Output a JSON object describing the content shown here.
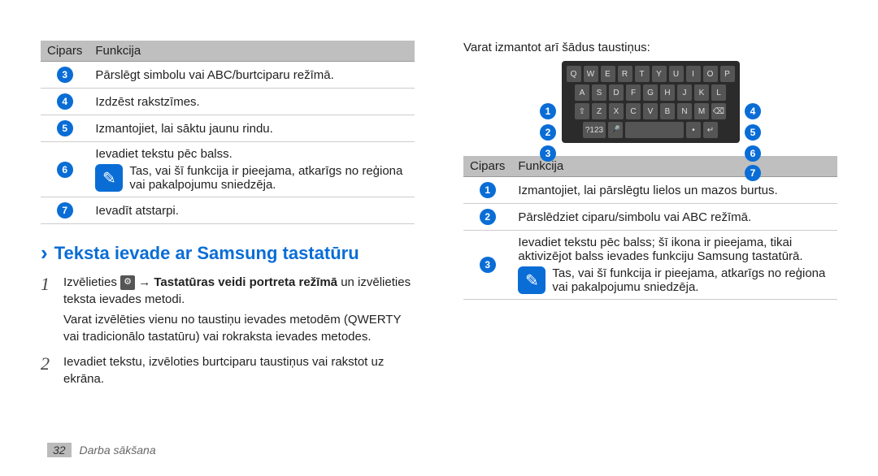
{
  "leftTable": {
    "headers": [
      "Cipars",
      "Funkcija"
    ],
    "rows": [
      {
        "num": "3",
        "text": "Pārslēgt simbolu vai ABC/burtciparu režīmā."
      },
      {
        "num": "4",
        "text": "Izdzēst rakstzīmes."
      },
      {
        "num": "5",
        "text": "Izmantojiet, lai sāktu jaunu rindu."
      },
      {
        "num": "6",
        "text": "Ievadiet tekstu pēc balss.",
        "note": "Tas, vai šī funkcija ir pieejama, atkarīgs no reģiona vai pakalpojumu sniedzēja."
      },
      {
        "num": "7",
        "text": "Ievadīt atstarpi."
      }
    ]
  },
  "section": {
    "title": "Teksta ievade ar Samsung tastatūru",
    "steps": [
      {
        "pre": "Izvēlieties ",
        "link": "→ Tastatūras veidi portreta režīmā",
        "post": " un izvēlieties teksta ievades metodi.",
        "extra": "Varat izvēlēties vienu no taustiņu ievades metodēm (QWERTY vai tradicionālo tastatūru) vai rokraksta ievades metodes."
      },
      {
        "pre": "Ievadiet tekstu, izvēloties burtciparu taustiņus vai rakstot uz ekrāna."
      }
    ]
  },
  "rightIntro": "Varat izmantot arī šādus taustiņus:",
  "keyboard": {
    "rows": [
      [
        "Q",
        "W",
        "E",
        "R",
        "T",
        "Y",
        "U",
        "I",
        "O",
        "P"
      ],
      [
        "A",
        "S",
        "D",
        "F",
        "G",
        "H",
        "J",
        "K",
        "L"
      ],
      [
        "⇧",
        "Z",
        "X",
        "C",
        "V",
        "B",
        "N",
        "M",
        "⌫"
      ],
      [
        "?123",
        "🎤",
        "␣",
        "•",
        "↵"
      ]
    ],
    "leftCallouts": [
      "1",
      "2",
      "3"
    ],
    "rightCallouts": [
      "4",
      "5",
      "6"
    ],
    "bottomCallout": "7"
  },
  "rightTable": {
    "headers": [
      "Cipars",
      "Funkcija"
    ],
    "rows": [
      {
        "num": "1",
        "text": "Izmantojiet, lai pārslēgtu lielos un mazos burtus."
      },
      {
        "num": "2",
        "text": "Pārslēdziet ciparu/simbolu vai ABC režīmā."
      },
      {
        "num": "3",
        "text": "Ievadiet tekstu pēc balss; šī ikona ir pieejama, tikai aktivizējot balss ievades funkciju Samsung tastatūrā.",
        "note": "Tas, vai šī funkcija ir pieejama, atkarīgs no reģiona vai pakalpojumu sniedzēja."
      }
    ]
  },
  "footer": {
    "page": "32",
    "section": "Darba sākšana"
  },
  "colors": {
    "accent": "#0a6dd6",
    "headerBg": "#bfbfbf"
  }
}
